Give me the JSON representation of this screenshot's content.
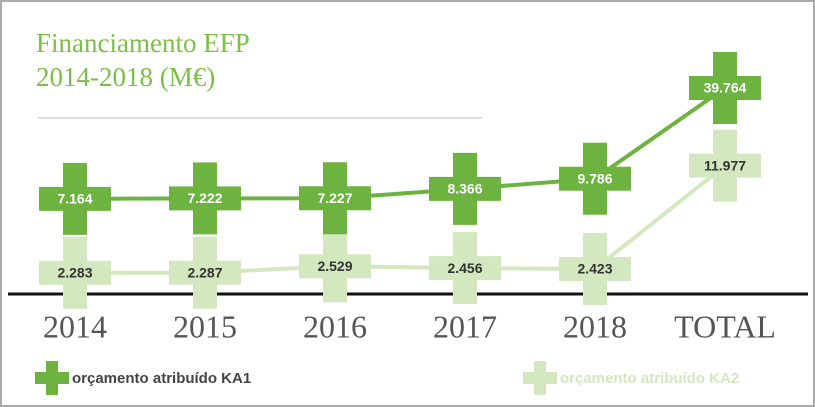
{
  "chart_data": {
    "type": "line",
    "title": "Financiamento EFP",
    "subtitle": "2014-2018 (M€)",
    "categories": [
      "2014",
      "2015",
      "2016",
      "2017",
      "2018",
      "TOTAL"
    ],
    "series": [
      {
        "name": "orçamento atribuído KA1",
        "color": "#6db33f",
        "values": [
          7.164,
          7.222,
          7.227,
          8.366,
          9.786,
          39.764
        ]
      },
      {
        "name": "orçamento atribuído KA2",
        "color": "#d3e8bf",
        "values": [
          2.283,
          2.287,
          2.529,
          2.456,
          2.423,
          11.977
        ]
      }
    ],
    "ylim": [
      1.5,
      45
    ],
    "log_scale": true,
    "legend": "bottom"
  }
}
